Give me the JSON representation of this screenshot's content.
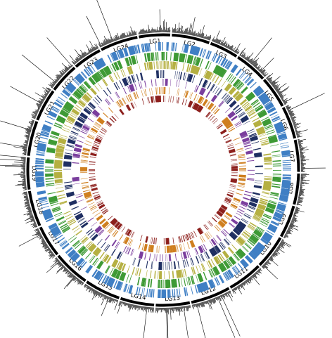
{
  "linkage_groups": [
    {
      "label": "LG1",
      "size": 0.78
    },
    {
      "label": "LG2",
      "size": 0.95
    },
    {
      "label": "LG3",
      "size": 0.72
    },
    {
      "label": "LG4",
      "size": 0.82
    },
    {
      "label": "LG5",
      "size": 0.8
    },
    {
      "label": "LG6",
      "size": 0.82
    },
    {
      "label": "LG7",
      "size": 0.8
    },
    {
      "label": "LG8",
      "size": 0.78
    },
    {
      "label": "LG9",
      "size": 0.82
    },
    {
      "label": "LG10",
      "size": 0.85
    },
    {
      "label": "LG11",
      "size": 0.88
    },
    {
      "label": "LG12",
      "size": 1.0
    },
    {
      "label": "LG13",
      "size": 0.85
    },
    {
      "label": "LG14",
      "size": 0.85
    },
    {
      "label": "LG15",
      "size": 0.9
    },
    {
      "label": "LG16",
      "size": 0.92
    },
    {
      "label": "LG17",
      "size": 0.8
    },
    {
      "label": "LG18",
      "size": 0.9
    },
    {
      "label": "LG19",
      "size": 0.8
    },
    {
      "label": "LG20",
      "size": 0.88
    },
    {
      "label": "LG21",
      "size": 0.82
    },
    {
      "label": "LG22",
      "size": 0.75
    },
    {
      "label": "LG23",
      "size": 0.72
    },
    {
      "label": "LG24",
      "size": 0.95
    }
  ],
  "tracks": [
    {
      "color": "#3f7fc4"
    },
    {
      "color": "#3e9a35"
    },
    {
      "color": "#b5b042"
    },
    {
      "color": "#1f2f62"
    },
    {
      "color": "#7a3e9d"
    },
    {
      "color": "#cf7f1f"
    },
    {
      "color": "#8c1f1c"
    }
  ]
}
